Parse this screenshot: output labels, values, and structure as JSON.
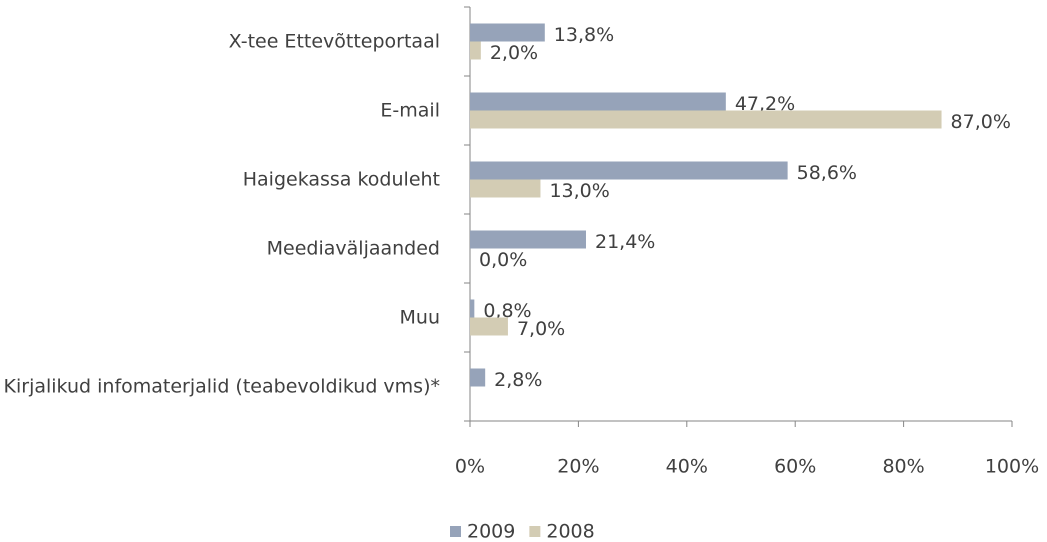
{
  "chart_data": {
    "type": "bar",
    "orientation": "horizontal",
    "categories": [
      "X-tee Ettevõtteportaal",
      "E-mail",
      "Haigekassa koduleht",
      "Meediaväljaanded",
      "Muu",
      "Kirjalikud infomaterjalid (teabevoldikud vms)*"
    ],
    "series": [
      {
        "name": "2009",
        "color": "#96a3b9",
        "values": [
          13.8,
          47.2,
          58.6,
          21.4,
          0.8,
          2.8
        ],
        "value_labels": [
          "13,8%",
          "47,2%",
          "58,6%",
          "21,4%",
          "0,8%",
          "2,8%"
        ]
      },
      {
        "name": "2008",
        "color": "#d3ccb4",
        "values": [
          2.0,
          87.0,
          13.0,
          0.0,
          7.0,
          null
        ],
        "value_labels": [
          "2,0%",
          "87,0%",
          "13,0%",
          "0,0%",
          "7,0%",
          null
        ]
      }
    ],
    "xlim": [
      0,
      100
    ],
    "xticks": [
      {
        "value": 0,
        "label": "0%"
      },
      {
        "value": 20,
        "label": "20%"
      },
      {
        "value": 40,
        "label": "40%"
      },
      {
        "value": 60,
        "label": "60%"
      },
      {
        "value": 80,
        "label": "80%"
      },
      {
        "value": 100,
        "label": "100%"
      }
    ],
    "grid": false,
    "legend": "bottom"
  }
}
